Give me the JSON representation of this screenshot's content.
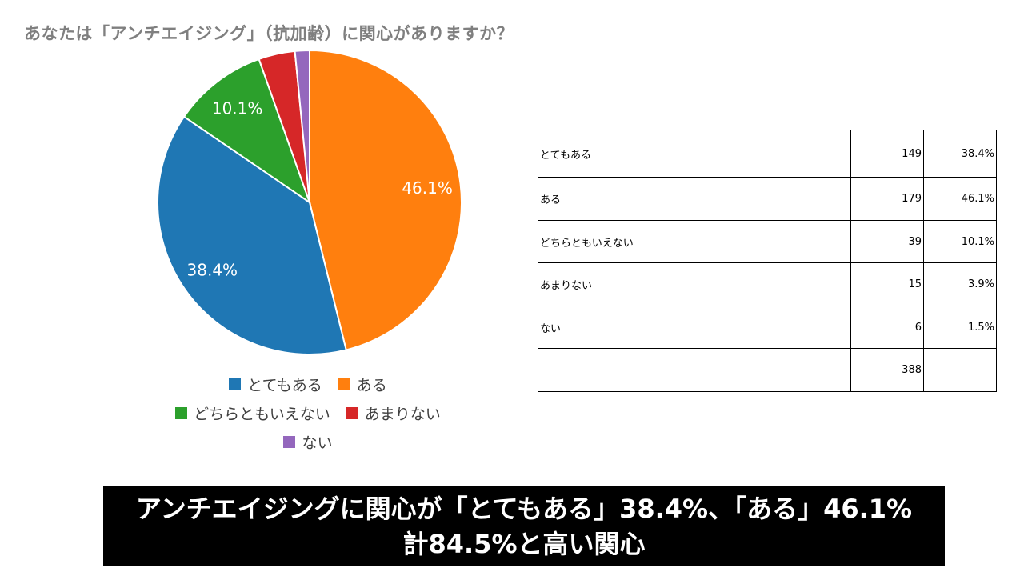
{
  "title": "あなたは「アンチエイジング」（抗加齢）に関心がありますか？",
  "chart_data": {
    "type": "pie",
    "categories": [
      "とてもある",
      "ある",
      "どちらともいえない",
      "あまりない",
      "ない"
    ],
    "values": [
      149,
      179,
      39,
      15,
      6
    ],
    "percent_labels": [
      "38.4%",
      "46.1%",
      "10.1%",
      "",
      ""
    ],
    "colors": [
      "#1f77b4",
      "#ff7f0e",
      "#2ca02c",
      "#d62728",
      "#9467bd"
    ],
    "legend_placement": "bottom"
  },
  "legend": {
    "rows": [
      [
        {
          "label": "とてもある",
          "color": "#1f77b4"
        },
        {
          "label": "ある",
          "color": "#ff7f0e"
        }
      ],
      [
        {
          "label": "どちらともいえない",
          "color": "#2ca02c"
        },
        {
          "label": "あまりない",
          "color": "#d62728"
        }
      ],
      [
        {
          "label": "ない",
          "color": "#9467bd"
        }
      ]
    ]
  },
  "table": {
    "rows": [
      {
        "label": "とてもある",
        "count": "149",
        "pct": "38.4%"
      },
      {
        "label": "ある",
        "count": "179",
        "pct": "46.1%"
      },
      {
        "label": "どちらともいえない",
        "count": "39",
        "pct": "10.1%"
      },
      {
        "label": "あまりない",
        "count": "15",
        "pct": "3.9%"
      },
      {
        "label": "ない",
        "count": "6",
        "pct": "1.5%"
      },
      {
        "label": "",
        "count": "388",
        "pct": ""
      }
    ]
  },
  "banner": {
    "line1": "アンチエイジングに関心が「とてもある」38.4%、「ある」46.1%",
    "line2": "計84.5%と高い関心"
  }
}
